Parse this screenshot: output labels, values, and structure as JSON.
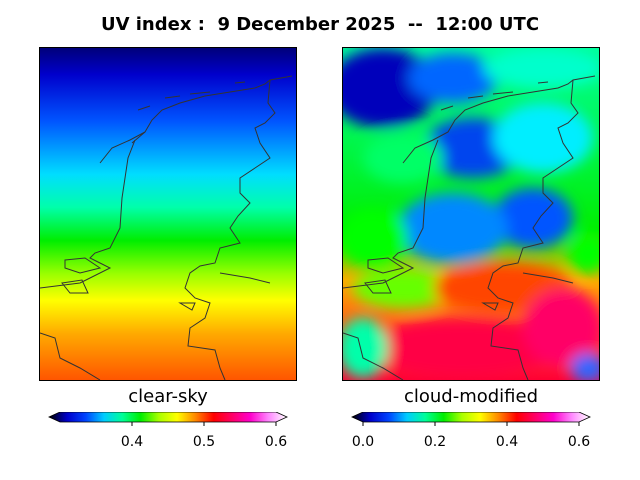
{
  "title": "UV index :  9 December 2025  --  12:00 UTC",
  "panels": {
    "left": {
      "label": "clear-sky",
      "colorbar": {
        "min": 0.3,
        "max": 0.6,
        "ticks": [
          "0.4",
          "0.5",
          "0.6"
        ],
        "tick_values": [
          0.4,
          0.5,
          0.6
        ],
        "extend": "both"
      }
    },
    "right": {
      "label": "cloud-modified",
      "colorbar": {
        "min": 0.0,
        "max": 0.6,
        "ticks": [
          "0.0",
          "0.2",
          "0.4",
          "0.6"
        ],
        "tick_values": [
          0.0,
          0.2,
          0.4,
          0.6
        ],
        "extend": "both"
      }
    }
  },
  "colormap": [
    "#000000",
    "#0000cc",
    "#0044ff",
    "#00ccff",
    "#00ff99",
    "#00ee00",
    "#aaff00",
    "#ffff00",
    "#ff8800",
    "#ff0000",
    "#ff0066",
    "#ff00cc",
    "#ff88ff",
    "#ffffff"
  ],
  "coastline_color": "#333333"
}
